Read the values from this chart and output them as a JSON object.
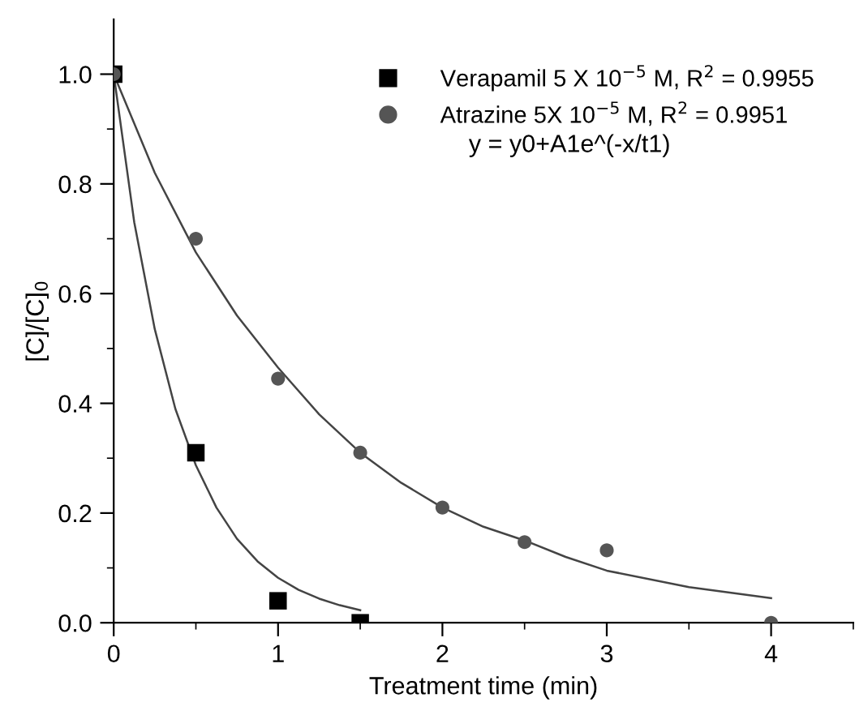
{
  "chart_data": {
    "type": "scatter",
    "xlabel": "Treatment time (min)",
    "ylabel": "[C]/[C]$_{0}$",
    "xlim": [
      0,
      4.5
    ],
    "ylim": [
      0,
      1.1
    ],
    "xticks": [
      0,
      {
        "value": 0.5,
        "label": null
      },
      1,
      {
        "value": 1.5,
        "label": null
      },
      2,
      {
        "value": 2.5,
        "label": null
      },
      3,
      {
        "value": 3.5,
        "label": null
      },
      4,
      {
        "value": 4.5,
        "label": null
      }
    ],
    "yticks": [
      {
        "value": 0,
        "label": "0.0"
      },
      {
        "value": 0.1,
        "label": null
      },
      0.2,
      {
        "value": 0.3,
        "label": null
      },
      0.4,
      {
        "value": 0.5,
        "label": null
      },
      0.6,
      {
        "value": 0.7,
        "label": null
      },
      0.8,
      {
        "value": 0.9,
        "label": null
      },
      {
        "value": 1,
        "label": "1.0"
      }
    ],
    "grid": false,
    "legend": "top right",
    "annotations": [
      "y = y0+A1e^(-x/t1)"
    ],
    "series": [
      {
        "name": "Verapamil 5 X 10$^{−5}$ M, R$^{2}$ = 0.9955",
        "marker": "square",
        "color": "#000000",
        "x": [
          0,
          0.5,
          1,
          1.5
        ],
        "values": [
          1,
          0.31,
          0.04,
          0
        ]
      },
      {
        "name": "Atrazine 5X 10$^{−5}$ M, R$^{2}$ = 0.9951",
        "marker": "circle",
        "color": "#555555",
        "x": [
          0,
          0.5,
          1,
          1.5,
          2,
          2.5,
          3,
          4
        ],
        "values": [
          1,
          0.7,
          0.445,
          0.31,
          0.21,
          0.147,
          0.132,
          0
        ]
      },
      {
        "type": "line",
        "marker": "none",
        "line_style": "solid",
        "color": "#444444",
        "x": [
          0,
          0.125,
          0.25,
          0.375,
          0.5,
          0.625,
          0.75,
          0.875,
          1,
          1.125,
          1.25,
          1.375,
          1.5
        ],
        "values": [
          1,
          0.73,
          0.535,
          0.39,
          0.287,
          0.21,
          0.153,
          0.112,
          0.082,
          0.06,
          0.044,
          0.032,
          0.023
        ]
      },
      {
        "type": "line",
        "marker": "none",
        "line_style": "solid",
        "color": "#444444",
        "x": [
          0,
          0.25,
          0.5,
          0.75,
          1,
          1.25,
          1.5,
          1.75,
          2,
          2.25,
          2.5,
          2.75,
          3,
          3.5,
          4
        ],
        "values": [
          1,
          0.82,
          0.675,
          0.56,
          0.465,
          0.38,
          0.31,
          0.255,
          0.21,
          0.175,
          0.15,
          0.12,
          0.095,
          0.065,
          0.045
        ]
      }
    ]
  }
}
